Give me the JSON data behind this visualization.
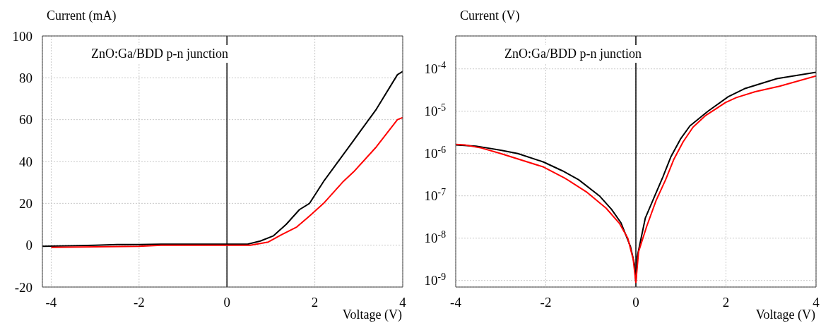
{
  "chart_data": [
    {
      "type": "line",
      "xlabel": "Voltage (V)",
      "ylabel": "Current (mA)",
      "annotations": [
        "ZnO:Ga/BDD p-n junction"
      ],
      "xlim": [
        -4.2,
        4
      ],
      "xticks": [
        -4,
        -2,
        0,
        2,
        4
      ],
      "ylim": [
        -20,
        100
      ],
      "yticks": [
        -20,
        0,
        20,
        40,
        60,
        80,
        100
      ],
      "grid": true,
      "ref_lines": [
        {
          "axis": "x",
          "value": 0,
          "color": "#000000"
        }
      ],
      "series": [
        {
          "color": "#000000",
          "x": [
            -4.2,
            -3.5,
            -3.0,
            -2.5,
            -2.0,
            -1.5,
            -1.0,
            0.0,
            0.47,
            0.76,
            1.06,
            1.35,
            1.65,
            1.88,
            2.2,
            2.88,
            3.4,
            3.88,
            4.0
          ],
          "values": [
            -0.5,
            -0.3,
            0,
            0.3,
            0.3,
            0.5,
            0.5,
            0.5,
            0.5,
            2,
            4.5,
            10,
            17,
            20,
            30.5,
            50,
            65,
            81.5,
            83
          ]
        },
        {
          "color": "#ff0000",
          "x": [
            -4.0,
            -3.0,
            -2.0,
            -1.5,
            0.0,
            0.53,
            0.94,
            1.24,
            1.59,
            1.88,
            2.2,
            2.65,
            2.88,
            3.4,
            3.88,
            4.0
          ],
          "values": [
            -1,
            -0.8,
            -0.5,
            0,
            0,
            0,
            1.5,
            5,
            8.7,
            14,
            20,
            30.5,
            35,
            47,
            60,
            61
          ]
        }
      ]
    },
    {
      "type": "line",
      "xlabel": "Voltage (V)",
      "ylabel": "Current (V)",
      "annotations": [
        "ZnO:Ga/BDD p-n junction"
      ],
      "log": "y",
      "xlim": [
        -4,
        4
      ],
      "xticks": [
        -4,
        -2,
        0,
        2,
        4
      ],
      "ylim": [
        7e-10,
        0.0006
      ],
      "yticks": [
        {
          "value": 1e-09,
          "label": "10$^{-9}$"
        },
        {
          "value": 1e-08,
          "label": "10$^{-8}$"
        },
        {
          "value": 1e-07,
          "label": "10$^{-7}$"
        },
        {
          "value": 1e-06,
          "label": "10$^{-6}$"
        },
        {
          "value": 1e-05,
          "label": "10$^{-5}$"
        },
        {
          "value": 0.0001,
          "label": "10$^{-4}$"
        }
      ],
      "grid": true,
      "ref_lines": [
        {
          "axis": "x",
          "value": 0,
          "color": "#000000"
        }
      ],
      "series": [
        {
          "color": "#000000",
          "x": [
            -4,
            -3.55,
            -3.0,
            -2.62,
            -2.05,
            -1.63,
            -1.27,
            -0.81,
            -0.54,
            -0.33,
            -0.12,
            -0.03,
            0,
            0.03,
            0.21,
            0.42,
            0.6,
            0.78,
            0.99,
            1.2,
            1.6,
            2.05,
            2.41,
            3.13,
            4
          ],
          "values": [
            1.6e-06,
            1.5e-06,
            1.2e-06,
            1e-06,
            6.3e-07,
            3.9e-07,
            2.4e-07,
            1e-07,
            4.8e-08,
            2.3e-08,
            6.3e-09,
            2.4e-09,
            9e-10,
            3.6e-09,
            3e-08,
            1e-07,
            2.8e-07,
            8.5e-07,
            2.2e-06,
            4.5e-06,
            1e-05,
            2.2e-05,
            3.4e-05,
            5.9e-05,
            8.3e-05
          ]
        },
        {
          "color": "#ff0000",
          "x": [
            -4,
            -3.8,
            -3.43,
            -3.0,
            -2.05,
            -1.57,
            -1.08,
            -0.66,
            -0.36,
            -0.18,
            -0.06,
            0,
            0.06,
            0.24,
            0.45,
            0.66,
            0.84,
            1.05,
            1.27,
            1.54,
            1.99,
            2.23,
            2.65,
            3.19,
            4
          ],
          "values": [
            1.65e-06,
            1.6e-06,
            1.35e-06,
            1e-06,
            4.8e-07,
            2.6e-07,
            1.2e-07,
            5.1e-08,
            2.2e-08,
            1e-08,
            3.2e-09,
            9e-10,
            4.8e-09,
            1.9e-08,
            7.8e-08,
            2.4e-07,
            7.2e-07,
            1.9e-06,
            4.2e-06,
            7.8e-06,
            1.6e-05,
            2.1e-05,
            2.9e-05,
            3.9e-05,
            6.8e-05
          ]
        }
      ]
    }
  ]
}
